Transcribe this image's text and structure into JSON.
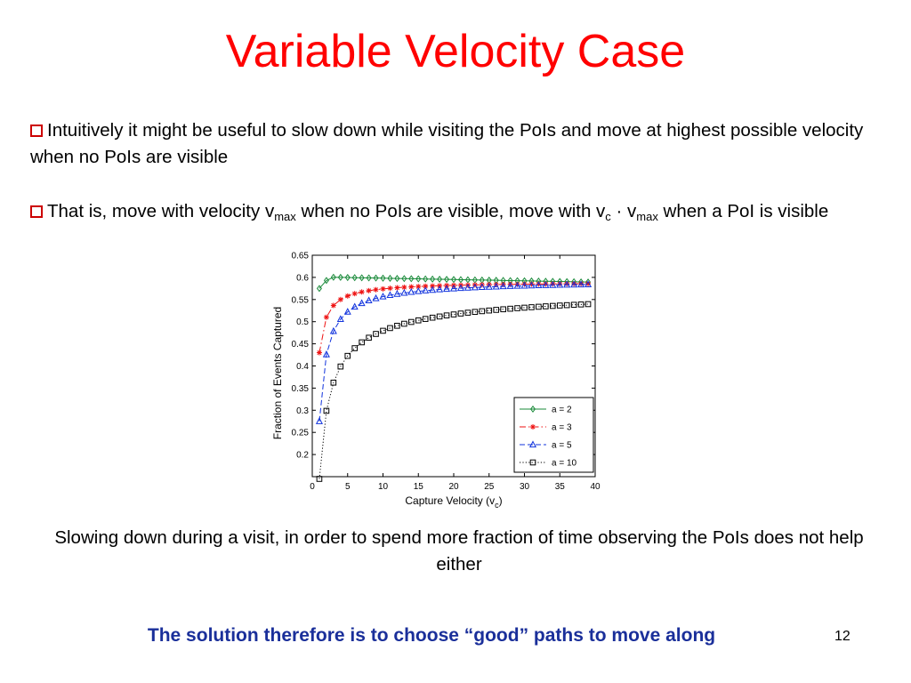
{
  "slide": {
    "title": "Variable Velocity Case",
    "bullets": [
      {
        "text": "Intuitively it might be useful to slow down while visiting the PoIs and move at highest possible velocity when no PoIs are visible"
      },
      {
        "parts": [
          "That is, move with velocity v",
          "max",
          " when no PoIs are visible, move with v",
          "c",
          " · v",
          "max",
          " when a PoI is visible"
        ]
      }
    ],
    "caption": "Slowing down during a visit, in order to spend more fraction of time observing the PoIs does not help either",
    "footer": "The solution therefore is to choose “good” paths to move along",
    "page_number": "12",
    "bullet_color": "#cc0000",
    "title_color": "#ff0000",
    "footer_color": "#1a2f9a"
  },
  "chart_data": {
    "type": "line",
    "xlabel_main": "Capture Velocity (v",
    "xlabel_sub": "c",
    "xlabel_end": ")",
    "ylabel": "Fraction of Events Captured",
    "xlim": [
      0,
      40
    ],
    "ylim": [
      0.15,
      0.65
    ],
    "xticks": [
      0,
      5,
      10,
      15,
      20,
      25,
      30,
      35,
      40
    ],
    "yticks": [
      0.2,
      0.25,
      0.3,
      0.35,
      0.4,
      0.45,
      0.5,
      0.55,
      0.6,
      0.65
    ],
    "grid": false,
    "legend_position": "bottom-right",
    "series": [
      {
        "name": "a = 2",
        "color": "#1a8a3a",
        "marker": "diamond",
        "dash": "solid",
        "a": 0.61,
        "b": 0.045,
        "c": 1.05,
        "peak_bump": true
      },
      {
        "name": "a = 3",
        "color": "#ee1111",
        "marker": "star",
        "dash": "dashdot",
        "a": 0.59,
        "b": 0.16,
        "c": 1.0
      },
      {
        "name": "a = 5",
        "color": "#1133dd",
        "marker": "triangle",
        "dash": "dashed",
        "a": 0.595,
        "b": 0.32,
        "c": 0.92
      },
      {
        "name": "a = 10",
        "color": "#000000",
        "marker": "square",
        "dash": "dotted",
        "a": 0.585,
        "b": 0.44,
        "c": 0.62
      }
    ]
  }
}
